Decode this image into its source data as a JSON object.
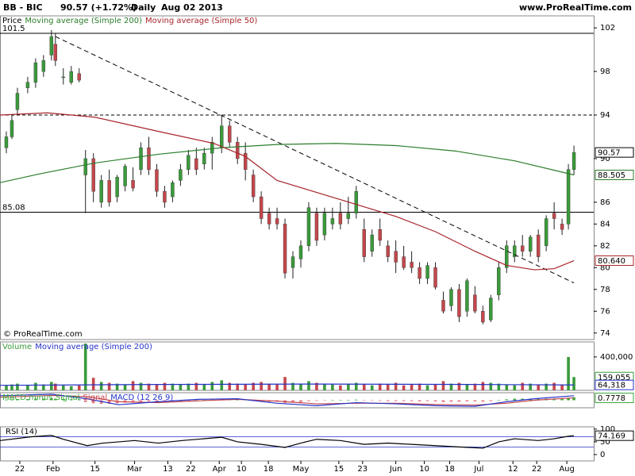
{
  "header": {
    "ticker": "BB - BIC",
    "price": "90.57 (+1.72%)",
    "period": "Daily",
    "date": "Aug 02 2013",
    "site": "www.ProRealTime.com"
  },
  "chart_data": [
    {
      "type": "candlestick",
      "name": "Price",
      "copyright": "© ProRealTime.com",
      "x": [
        1.6,
        3,
        4.4,
        7,
        9,
        11,
        13,
        14,
        16,
        18,
        20,
        21.6,
        23.6,
        25.6,
        27.6,
        29.6,
        31.6,
        33.6,
        35.6,
        37.6,
        39.6,
        41.6,
        43.6,
        45.6,
        47.6,
        49.6,
        51.6,
        53.6,
        56,
        58,
        60,
        62,
        64,
        66,
        68,
        70,
        72,
        74,
        76,
        78,
        80,
        82,
        84,
        86,
        88,
        90,
        92,
        94,
        96,
        98,
        100,
        102,
        104,
        106,
        108,
        110,
        112,
        114,
        116,
        118,
        120,
        122,
        124,
        126,
        128,
        130,
        132,
        134,
        136,
        138,
        140,
        142,
        143.6,
        145
      ],
      "open": [
        91,
        92,
        94.5,
        96.5,
        97,
        98,
        99.5,
        100.5,
        97.5,
        97,
        97.8,
        88.5,
        90,
        86,
        88,
        86.5,
        87.5,
        88,
        89,
        91,
        89,
        87,
        86.5,
        88,
        89,
        90,
        89.5,
        90.5,
        91,
        93,
        91.5,
        90.5,
        88.5,
        86.5,
        85,
        84.5,
        84,
        80,
        80.8,
        82,
        85,
        83,
        84,
        85,
        84.5,
        85,
        83.5,
        81.5,
        83.5,
        82,
        81.5,
        81,
        80.5,
        80,
        79,
        80,
        77,
        76.5,
        78,
        76,
        77.5,
        76,
        75.2,
        77.5,
        80,
        81,
        82,
        81.5,
        83,
        82,
        85,
        84,
        84,
        89
      ],
      "high": [
        92.5,
        94,
        96.5,
        97.5,
        99.2,
        99.5,
        101.8,
        101.5,
        98.3,
        98.5,
        98.3,
        90.8,
        90.5,
        88.5,
        89,
        88.5,
        89.5,
        89.2,
        91.5,
        92,
        89.5,
        87.5,
        88,
        89.5,
        90.8,
        91,
        91,
        92,
        94,
        93.5,
        92,
        91.5,
        89,
        87,
        85.5,
        85.5,
        84.5,
        81.5,
        82.5,
        86,
        85.5,
        85.5,
        85.5,
        86,
        86.5,
        87.5,
        84.5,
        83.5,
        84.5,
        82.5,
        82.5,
        82,
        81.5,
        80.5,
        80.5,
        80.5,
        77.8,
        78.2,
        78.5,
        79,
        78.3,
        76.5,
        77.5,
        80.5,
        82.5,
        82.5,
        83,
        83,
        83.5,
        84.8,
        86,
        84.5,
        89.5,
        91.2
      ],
      "low": [
        90.5,
        91.8,
        94,
        96,
        96.5,
        97.5,
        99,
        98.5,
        96.8,
        96.8,
        97,
        85,
        86,
        85.5,
        85.6,
        86,
        87,
        87,
        88.5,
        88.5,
        86.5,
        85.5,
        86,
        87.5,
        88.5,
        88.5,
        89,
        89,
        90.5,
        91,
        89.5,
        88,
        86,
        84,
        83.5,
        83.5,
        79,
        79,
        80,
        81.5,
        82,
        82.5,
        83.5,
        83.5,
        84,
        84.5,
        80.5,
        81,
        82,
        80.5,
        79.5,
        79.8,
        79.5,
        78.5,
        78.5,
        78,
        75.8,
        76,
        75,
        75.5,
        75.8,
        74.8,
        75,
        77,
        79.5,
        80.5,
        81,
        81,
        80.5,
        81.5,
        83.5,
        83,
        83.5,
        88.5
      ],
      "close": [
        92,
        93.5,
        96,
        97,
        98.8,
        99,
        101.2,
        99,
        97.5,
        98,
        97.2,
        90,
        87,
        88,
        86,
        88.3,
        89.3,
        87.3,
        91,
        89,
        87,
        86,
        87.8,
        89,
        90.3,
        89,
        90.5,
        91.5,
        93,
        91.5,
        90,
        89,
        86.5,
        84.5,
        84,
        84,
        79.5,
        81,
        82,
        85.5,
        82.5,
        85,
        84.5,
        84,
        85,
        87,
        81,
        83,
        82.5,
        81,
        80.5,
        80,
        80,
        79,
        80.2,
        78.2,
        76,
        78,
        75.5,
        78.8,
        76,
        75,
        77.2,
        80,
        82,
        82,
        81.5,
        82.8,
        81,
        84.5,
        84.5,
        83.5,
        89,
        90.57
      ],
      "up_color": "#3a9a3a",
      "down_color": "#c4474c",
      "series": [
        {
          "name": "Moving average (Simple 200)",
          "color": "#2b7d2b",
          "x": [
            0,
            10,
            24,
            40,
            56,
            70,
            85,
            100,
            115,
            130,
            145
          ],
          "values": [
            87.8,
            88.6,
            89.6,
            90.4,
            91,
            91.3,
            91.4,
            91.2,
            90.7,
            89.8,
            88.505
          ]
        },
        {
          "name": "Moving average (Simple 50)",
          "color": "#a8242a",
          "x": [
            0,
            12,
            24,
            40,
            54,
            62,
            70,
            80,
            90,
            100,
            110,
            120,
            128,
            135,
            140,
            145
          ],
          "values": [
            94,
            94.2,
            93.8,
            92.5,
            91.4,
            90.2,
            88,
            86.9,
            85.8,
            84.7,
            83.3,
            81.5,
            80.2,
            79.8,
            79.9,
            80.64
          ]
        }
      ],
      "levels": [
        {
          "value": 101.5,
          "label": "101.5"
        },
        {
          "value": 85.08,
          "label": "85.08"
        }
      ],
      "dashed_levels": [
        94
      ],
      "trendline": {
        "x": [
          14,
          145
        ],
        "values": [
          101.2,
          78.6
        ]
      },
      "ylim": [
        73.4,
        103.1
      ],
      "yticks": [
        74,
        76,
        78,
        80,
        82,
        84,
        86,
        90,
        94,
        98,
        102
      ],
      "tags": [
        90.57,
        88.505,
        {
          "value": 80.64,
          "label": "80.640"
        }
      ],
      "tag_colors": [
        "#000000",
        "#2b7d2b",
        "#a8242a"
      ]
    },
    {
      "type": "bar",
      "name": "Volume",
      "values": [
        60000,
        70000,
        80000,
        60000,
        90000,
        70000,
        100000,
        80000,
        60000,
        50000,
        60000,
        560000,
        150000,
        100000,
        90000,
        80000,
        70000,
        110000,
        90000,
        80000,
        70000,
        90000,
        80000,
        70000,
        80000,
        90000,
        70000,
        100000,
        120000,
        90000,
        80000,
        70000,
        90000,
        100000,
        80000,
        70000,
        160000,
        90000,
        80000,
        110000,
        90000,
        80000,
        70000,
        60000,
        80000,
        90000,
        70000,
        60000,
        80000,
        70000,
        90000,
        60000,
        70000,
        80000,
        60000,
        70000,
        110000,
        80000,
        90000,
        70000,
        80000,
        100000,
        90000,
        80000,
        70000,
        60000,
        90000,
        80000,
        70000,
        80000,
        90000,
        70000,
        400000,
        159055
      ],
      "up_color": "#3a9a3a",
      "down_color": "#c4474c",
      "series": [
        {
          "name": "Moving average (Simple 200)",
          "color": "#2432c8",
          "x": [
            0,
            40,
            80,
            120,
            145
          ],
          "values": [
            60000,
            70000,
            75000,
            70000,
            64318
          ]
        }
      ],
      "ylim": [
        0,
        580000
      ],
      "yticks": [
        {
          "value": 400000,
          "label": "400,000"
        }
      ],
      "tags": [
        {
          "value": 159055,
          "label": "159,055"
        },
        {
          "value": 64318,
          "label": "64,318"
        }
      ],
      "tag_colors": [
        "#3a9a3a",
        "#2432c8"
      ]
    },
    {
      "type": "histogram",
      "name": "MACD minus Signal",
      "color": "#3aa83a",
      "values": [
        0.2,
        0.3,
        0.4,
        0.4,
        0.5,
        0.5,
        0.6,
        0.5,
        0.4,
        0.3,
        0.3,
        -0.6,
        -1.0,
        -1.2,
        -1.2,
        -1.0,
        -0.8,
        -0.8,
        -0.5,
        -0.4,
        -0.4,
        -0.5,
        -0.4,
        -0.3,
        -0.1,
        0,
        0.1,
        0.2,
        0.4,
        0.4,
        0.3,
        0.2,
        -0.1,
        -0.4,
        -0.5,
        -0.5,
        -0.9,
        -0.8,
        -0.6,
        -0.3,
        -0.2,
        -0.1,
        0,
        0,
        0.1,
        0.2,
        -0.1,
        -0.1,
        -0.2,
        -0.3,
        -0.3,
        -0.3,
        -0.3,
        -0.4,
        -0.3,
        -0.4,
        -0.6,
        -0.5,
        -0.5,
        -0.4,
        -0.4,
        -0.5,
        -0.3,
        0,
        0.3,
        0.5,
        0.5,
        0.5,
        0.4,
        0.5,
        0.5,
        0.4,
        0.8,
        1.0
      ],
      "series": [
        {
          "name": "Signal",
          "color": "#c4474c",
          "x": [
            0,
            13,
            22,
            30,
            40,
            50,
            60,
            70,
            80,
            90,
            100,
            110,
            120,
            128,
            135,
            145
          ],
          "values": [
            1,
            1.6,
            1.2,
            -0.5,
            -0.8,
            -0.2,
            0.3,
            -0.3,
            -1.2,
            -1,
            -1,
            -1.4,
            -1.6,
            -1,
            0,
            0.8
          ]
        },
        {
          "name": "MACD (12 26 9)",
          "color": "#2432c8",
          "x": [
            0,
            13,
            22,
            30,
            40,
            50,
            60,
            70,
            80,
            90,
            100,
            110,
            120,
            128,
            135,
            145
          ],
          "values": [
            1.5,
            2,
            0.5,
            -1.5,
            -0.5,
            0.3,
            0.5,
            -1,
            -1.8,
            -0.8,
            -1.2,
            -1.8,
            -2,
            -0.5,
            0.5,
            1.5
          ]
        }
      ],
      "ylim": [
        -2.5,
        2.5
      ],
      "tags": [
        0.7778
      ],
      "tag_colors": [
        "#3aa83a"
      ]
    },
    {
      "type": "line",
      "series": [
        {
          "name": "RSI (14)",
          "color": "#000000",
          "x": [
            0,
            8,
            13,
            16,
            22,
            26,
            34,
            40,
            46,
            56,
            60,
            66,
            72,
            76,
            80,
            86,
            92,
            98,
            104,
            110,
            116,
            122,
            126,
            130,
            136,
            140,
            143.6,
            145
          ],
          "values": [
            55,
            70,
            75,
            60,
            35,
            45,
            55,
            45,
            55,
            68,
            50,
            40,
            28,
            45,
            60,
            55,
            40,
            45,
            40,
            35,
            30,
            25,
            50,
            62,
            55,
            62,
            72,
            74.169
          ]
        }
      ],
      "hlines": [
        30,
        70
      ],
      "ylim": [
        -25,
        109
      ],
      "yticks": [
        0,
        50,
        100
      ],
      "tags": [
        74.169
      ],
      "tag_colors": [
        "#000000"
      ],
      "xlim": [
        0,
        150
      ],
      "xticks": [
        {
          "value": 5,
          "label": "22"
        },
        {
          "value": 13.4,
          "label": "Feb"
        },
        {
          "value": 24,
          "label": "15"
        },
        {
          "value": 34,
          "label": "Mar"
        },
        {
          "value": 42.4,
          "label": "13"
        },
        {
          "value": 48.2,
          "label": "22"
        },
        {
          "value": 55.4,
          "label": "Apr"
        },
        {
          "value": 61,
          "label": "10"
        },
        {
          "value": 67.8,
          "label": "18"
        },
        {
          "value": 76,
          "label": "May"
        },
        {
          "value": 85.6,
          "label": "15"
        },
        {
          "value": 91.6,
          "label": "23"
        },
        {
          "value": 100,
          "label": "Jun"
        },
        {
          "value": 107.2,
          "label": "10"
        },
        {
          "value": 113.6,
          "label": "18"
        },
        {
          "value": 121,
          "label": "Jul"
        },
        {
          "value": 129.6,
          "label": "12"
        },
        {
          "value": 135.6,
          "label": "22"
        },
        {
          "value": 143.2,
          "label": "Aug"
        }
      ]
    }
  ]
}
